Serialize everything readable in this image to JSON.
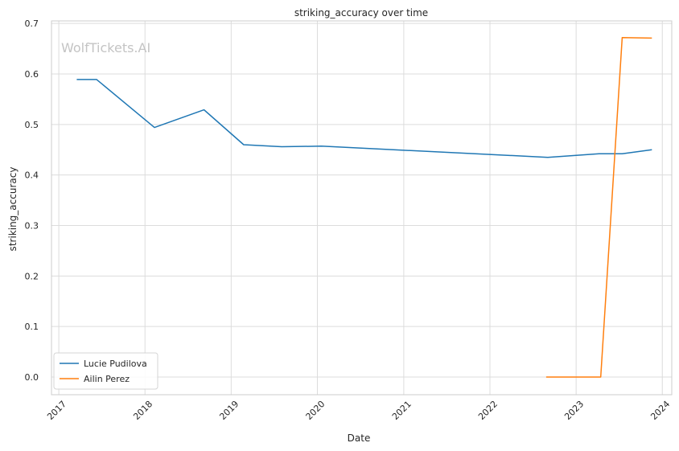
{
  "chart_data": {
    "type": "line",
    "title": "striking_accuracy over time",
    "xlabel": "Date",
    "ylabel": "striking_accuracy",
    "watermark": "WolfTickets.AI",
    "x_ticks": [
      "2017",
      "2018",
      "2019",
      "2020",
      "2021",
      "2022",
      "2023",
      "2024"
    ],
    "y_ticks": [
      "0.0",
      "0.1",
      "0.2",
      "0.3",
      "0.4",
      "0.5",
      "0.6",
      "0.7"
    ],
    "xlim": [
      "2016-12-01",
      "2024-02-10"
    ],
    "ylim": [
      -0.035,
      0.705
    ],
    "grid": true,
    "legend_position": "bottom-left",
    "colors": {
      "Lucie Pudilova": "#1f77b4",
      "Ailin Perez": "#ff7f0e"
    },
    "series": [
      {
        "name": "Lucie Pudilova",
        "x": [
          "2017-03-18",
          "2017-06-10",
          "2018-02-10",
          "2018-09-08",
          "2019-02-23",
          "2019-08-03",
          "2020-01-18",
          "2022-09-03",
          "2023-04-08",
          "2023-07-15",
          "2023-11-18"
        ],
        "y": [
          0.589,
          0.589,
          0.494,
          0.529,
          0.46,
          0.456,
          0.457,
          0.435,
          0.442,
          0.442,
          0.45
        ]
      },
      {
        "name": "Ailin Perez",
        "x": [
          "2022-08-27",
          "2023-04-15",
          "2023-07-15",
          "2023-11-18"
        ],
        "y": [
          0.0,
          0.0,
          0.672,
          0.671
        ]
      }
    ]
  }
}
